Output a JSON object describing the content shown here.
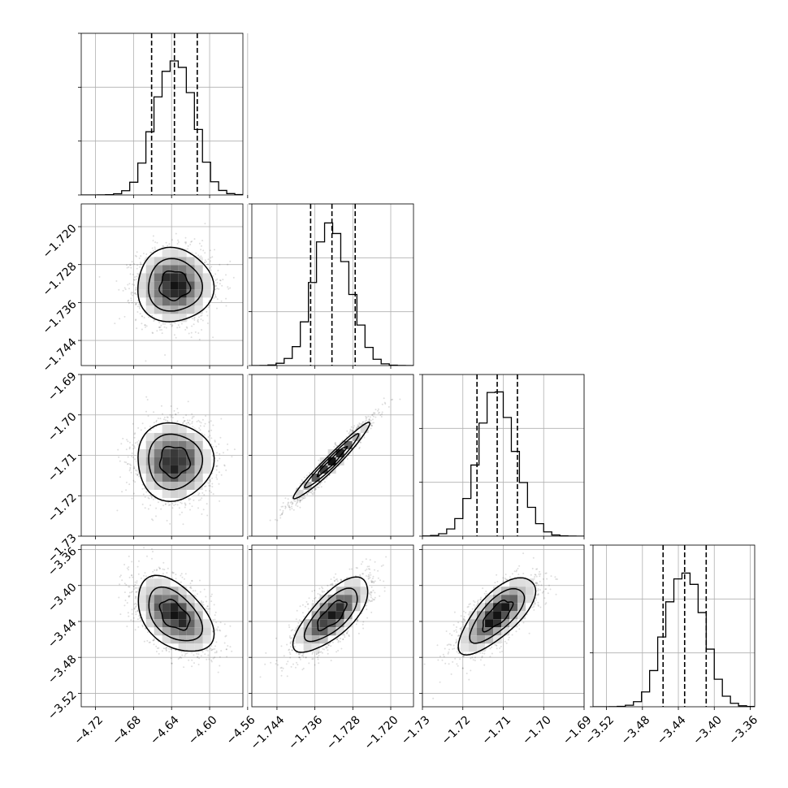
{
  "chart_data": {
    "type": "corner",
    "grid": true,
    "parameters": [
      {
        "ticks": [
          -4.72,
          -4.68,
          -4.64,
          -4.6,
          -4.56
        ],
        "tick_labels": [
          "−4.72",
          "−4.68",
          "−4.64",
          "−4.60",
          "−4.56"
        ],
        "range": [
          -4.735,
          -4.565
        ],
        "mean": -4.637,
        "sigma": 0.0195,
        "quantiles": [
          -4.661,
          -4.637,
          -4.613
        ]
      },
      {
        "ticks": [
          -1.744,
          -1.736,
          -1.728,
          -1.72
        ],
        "tick_labels": [
          "−1.744",
          "−1.736",
          "−1.728",
          "−1.720"
        ],
        "range": [
          -1.7493,
          -1.7152
        ],
        "mean": -1.7324,
        "sigma": 0.0038,
        "quantiles": [
          -1.7369,
          -1.7324,
          -1.7275
        ]
      },
      {
        "ticks": [
          -1.73,
          -1.72,
          -1.71,
          -1.7,
          -1.69
        ],
        "tick_labels": [
          "−1.73",
          "−1.72",
          "−1.71",
          "−1.70",
          "−1.69"
        ],
        "range": [
          -1.73,
          -1.69
        ],
        "mean": -1.7115,
        "sigma": 0.0047,
        "quantiles": [
          -1.7165,
          -1.7115,
          -1.7065
        ]
      },
      {
        "ticks": [
          -3.52,
          -3.48,
          -3.44,
          -3.4,
          -3.36
        ],
        "tick_labels": [
          "−3.52",
          "−3.48",
          "−3.44",
          "−3.40",
          "−3.36"
        ],
        "range": [
          -3.535,
          -3.355
        ],
        "mean": -3.433,
        "sigma": 0.0205,
        "quantiles": [
          -3.457,
          -3.433,
          -3.409
        ]
      }
    ],
    "correlations": {
      "1-0": 0.0,
      "2-0": 0.0,
      "2-1": 0.97,
      "3-0": -0.45,
      "3-1": 0.72,
      "3-2": 0.72
    },
    "contour_levels": [
      0.5,
      1.0,
      1.5
    ]
  }
}
